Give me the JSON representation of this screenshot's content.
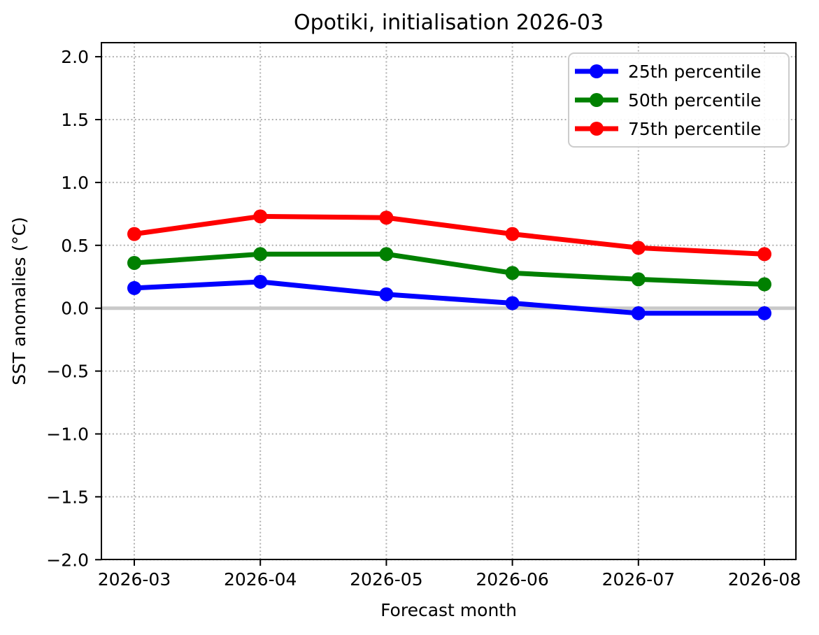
{
  "figure": {
    "title": "Opotiki, initialisation 2026-03"
  },
  "chart_data": {
    "type": "line",
    "title": "Opotiki, initialisation 2026-03",
    "xlabel": "Forecast month",
    "ylabel": "SST anomalies (°C)",
    "categories": [
      "2026-03",
      "2026-04",
      "2026-05",
      "2026-06",
      "2026-07",
      "2026-08"
    ],
    "series": [
      {
        "name": "25th percentile",
        "color": "#0000ff",
        "values": [
          0.16,
          0.21,
          0.11,
          0.04,
          -0.04,
          -0.04
        ]
      },
      {
        "name": "50th percentile",
        "color": "#008000",
        "values": [
          0.36,
          0.43,
          0.43,
          0.28,
          0.23,
          0.19
        ]
      },
      {
        "name": "75th percentile",
        "color": "#ff0000",
        "values": [
          0.59,
          0.73,
          0.72,
          0.59,
          0.48,
          0.43
        ]
      }
    ],
    "ylim": [
      -2.0,
      2.11
    ],
    "yticks": [
      2.0,
      1.5,
      1.0,
      0.5,
      0.0,
      -0.5,
      -1.0,
      -1.5,
      -2.0
    ],
    "grid": true,
    "grid_style": "dotted",
    "grid_color": "#b0b0b0",
    "zero_line": true,
    "zero_line_color": "#c9c9c9",
    "axis_color": "#000000",
    "text_color": "#000000",
    "legend_position": "upper right",
    "legend_border_color": "#cccccc",
    "legend_background": "#ffffff",
    "marker": "circle"
  }
}
